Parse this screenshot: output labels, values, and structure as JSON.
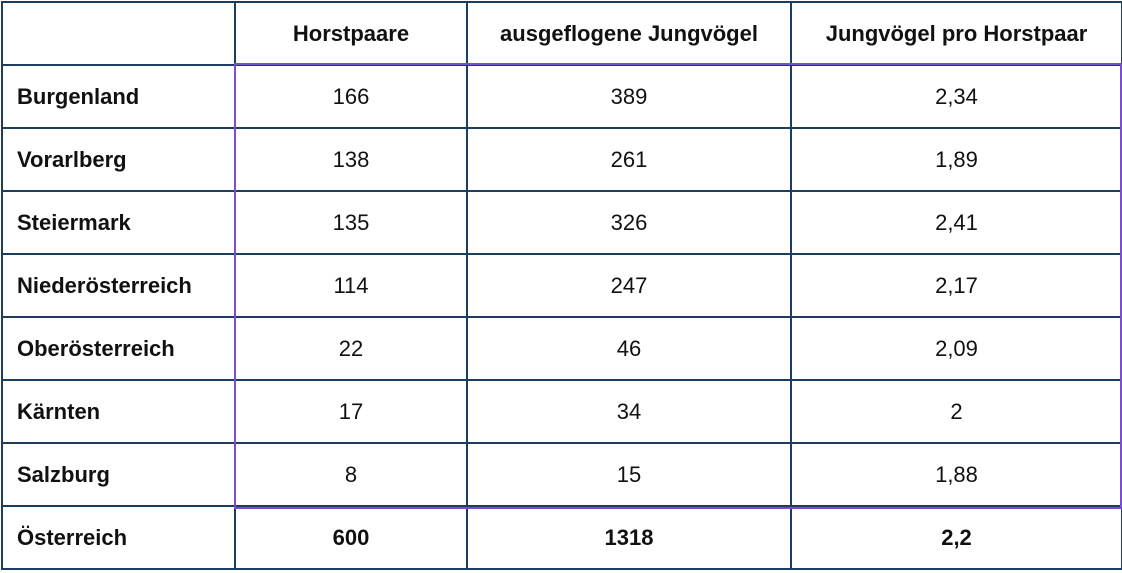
{
  "table": {
    "header": [
      "",
      "Horstpaare",
      "ausgeflogene Jungvögel",
      "Jungvögel pro Horstpaar"
    ],
    "rows": [
      [
        "Burgenland",
        "166",
        "389",
        "2,34"
      ],
      [
        "Vorarlberg",
        "138",
        "261",
        "1,89"
      ],
      [
        "Steiermark",
        "135",
        "326",
        "2,41"
      ],
      [
        "Niederösterreich",
        "114",
        "247",
        "2,17"
      ],
      [
        "Oberösterreich",
        "22",
        "46",
        "2,09"
      ],
      [
        "Kärnten",
        "17",
        "34",
        "2"
      ],
      [
        "Salzburg",
        "8",
        "15",
        "1,88"
      ]
    ],
    "total": [
      "Österreich",
      "600",
      "1318",
      "2,2"
    ]
  }
}
